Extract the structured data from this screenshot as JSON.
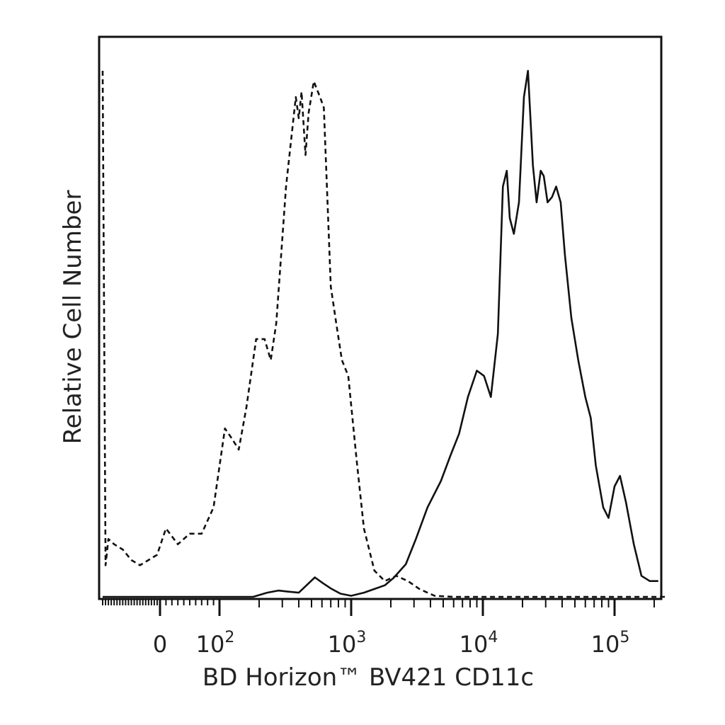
{
  "chart_data": {
    "type": "line",
    "title": "",
    "xlabel": "BD Horizon™ BV421 CD11c",
    "ylabel": "Relative Cell Number",
    "x_scale": "biexponential",
    "xlim": [
      -200,
      250000
    ],
    "ylim": [
      0,
      100
    ],
    "grid": false,
    "legend": "none",
    "x_ticks": [
      {
        "value": 0,
        "label": "0"
      },
      {
        "value": 100,
        "label": "10",
        "exp": "2"
      },
      {
        "value": 1000,
        "label": "10",
        "exp": "3"
      },
      {
        "value": 10000,
        "label": "10",
        "exp": "4"
      },
      {
        "value": 100000,
        "label": "10",
        "exp": "5"
      }
    ],
    "series": [
      {
        "style": "dashed",
        "color": "#111111",
        "points": [
          [
            -200,
            100
          ],
          [
            -190,
            6
          ],
          [
            -180,
            11
          ],
          [
            -160,
            10
          ],
          [
            -130,
            9
          ],
          [
            -100,
            7
          ],
          [
            -70,
            6
          ],
          [
            -40,
            7
          ],
          [
            -10,
            8
          ],
          [
            10,
            13
          ],
          [
            30,
            10
          ],
          [
            50,
            12
          ],
          [
            70,
            12
          ],
          [
            90,
            17
          ],
          [
            110,
            32
          ],
          [
            125,
            30
          ],
          [
            140,
            28
          ],
          [
            160,
            36
          ],
          [
            190,
            49
          ],
          [
            220,
            49
          ],
          [
            245,
            45
          ],
          [
            270,
            52
          ],
          [
            320,
            78
          ],
          [
            380,
            95
          ],
          [
            400,
            91
          ],
          [
            420,
            96
          ],
          [
            450,
            84
          ],
          [
            475,
            92
          ],
          [
            520,
            98
          ],
          [
            580,
            95
          ],
          [
            620,
            93
          ],
          [
            700,
            59
          ],
          [
            770,
            52
          ],
          [
            850,
            45
          ],
          [
            950,
            42
          ],
          [
            1100,
            26
          ],
          [
            1250,
            13
          ],
          [
            1500,
            5
          ],
          [
            1800,
            3
          ],
          [
            2200,
            4
          ],
          [
            2700,
            3
          ],
          [
            3300,
            1.5
          ],
          [
            4300,
            0.2
          ],
          [
            6000,
            0
          ],
          [
            250000,
            0
          ]
        ]
      },
      {
        "style": "solid",
        "color": "#111111",
        "points": [
          [
            -200,
            0
          ],
          [
            180,
            0
          ],
          [
            230,
            0.8
          ],
          [
            280,
            1.2
          ],
          [
            330,
            1
          ],
          [
            400,
            0.8
          ],
          [
            450,
            2
          ],
          [
            530,
            3.7
          ],
          [
            610,
            2.6
          ],
          [
            700,
            1.6
          ],
          [
            830,
            0.6
          ],
          [
            1000,
            0.2
          ],
          [
            1250,
            0.8
          ],
          [
            1500,
            1.5
          ],
          [
            1800,
            2.2
          ],
          [
            2100,
            3.6
          ],
          [
            2600,
            6.2
          ],
          [
            3100,
            11
          ],
          [
            3800,
            17
          ],
          [
            4800,
            22
          ],
          [
            5700,
            27
          ],
          [
            6600,
            31
          ],
          [
            7700,
            38
          ],
          [
            9000,
            43
          ],
          [
            10200,
            42
          ],
          [
            11500,
            38
          ],
          [
            13000,
            50
          ],
          [
            14200,
            78
          ],
          [
            15200,
            81
          ],
          [
            16000,
            72
          ],
          [
            17200,
            69
          ],
          [
            18800,
            75
          ],
          [
            20500,
            95
          ],
          [
            22000,
            100
          ],
          [
            24000,
            82
          ],
          [
            25600,
            75
          ],
          [
            27500,
            81
          ],
          [
            29000,
            80
          ],
          [
            31000,
            75
          ],
          [
            33500,
            76
          ],
          [
            36000,
            78
          ],
          [
            39000,
            75
          ],
          [
            42000,
            65
          ],
          [
            47000,
            53
          ],
          [
            53000,
            45
          ],
          [
            60000,
            38
          ],
          [
            66000,
            34
          ],
          [
            72000,
            25
          ],
          [
            82000,
            17
          ],
          [
            90000,
            15
          ],
          [
            100000,
            21
          ],
          [
            110000,
            23
          ],
          [
            122000,
            18
          ],
          [
            140000,
            10
          ],
          [
            160000,
            4
          ],
          [
            185000,
            3
          ],
          [
            215000,
            3
          ]
        ]
      }
    ]
  }
}
